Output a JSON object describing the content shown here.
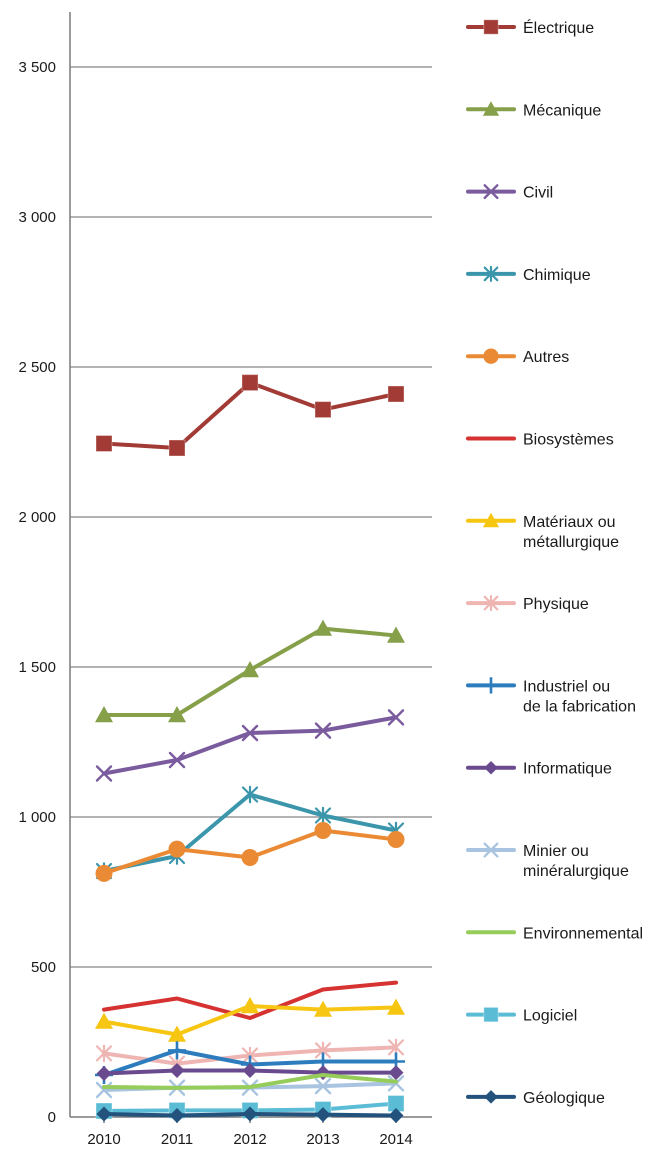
{
  "chart_data": {
    "type": "line",
    "title": "",
    "xlabel": "",
    "ylabel": "",
    "x": [
      "2010",
      "2011",
      "2012",
      "2013",
      "2014"
    ],
    "ylim": [
      0,
      3700
    ],
    "y_ticks": [
      0,
      500,
      1000,
      1500,
      2000,
      2500,
      3000,
      3500
    ],
    "y_tick_labels": [
      "0",
      "500",
      "1 000",
      "1 500",
      "2 000",
      "2 500",
      "3 000",
      "3 500"
    ],
    "grid": true,
    "legend_position": "right",
    "series": [
      {
        "name": "Électrique",
        "label_lines": [
          "Électrique"
        ],
        "color": "#a23b35",
        "marker": "square",
        "values": [
          2245,
          2230,
          2448,
          2358,
          2410
        ]
      },
      {
        "name": "Mécanique",
        "label_lines": [
          "Mécanique"
        ],
        "color": "#86a04a",
        "marker": "triangle",
        "values": [
          1340,
          1340,
          1490,
          1628,
          1605
        ]
      },
      {
        "name": "Civil",
        "label_lines": [
          "Civil"
        ],
        "color": "#7a5b9e",
        "marker": "x",
        "values": [
          1145,
          1190,
          1280,
          1288,
          1332
        ]
      },
      {
        "name": "Chimique",
        "label_lines": [
          "Chimique"
        ],
        "color": "#3b96ac",
        "marker": "star",
        "values": [
          820,
          870,
          1075,
          1005,
          955
        ]
      },
      {
        "name": "Autres",
        "label_lines": [
          "Autres"
        ],
        "color": "#ea8a35",
        "marker": "circle",
        "values": [
          812,
          893,
          865,
          955,
          925
        ]
      },
      {
        "name": "Biosystèmes",
        "label_lines": [
          "Biosystèmes"
        ],
        "color": "#d63232",
        "marker": "none",
        "values": [
          358,
          395,
          330,
          425,
          448
        ]
      },
      {
        "name": "Matériaux ou métallurgique",
        "label_lines": [
          "Matériaux ou",
          "métallurgique"
        ],
        "color": "#f7c613",
        "marker": "triangle",
        "values": [
          318,
          275,
          370,
          358,
          365
        ]
      },
      {
        "name": "Physique",
        "label_lines": [
          "Physique"
        ],
        "color": "#efb5b3",
        "marker": "star",
        "values": [
          212,
          178,
          205,
          222,
          232
        ]
      },
      {
        "name": "Industriel ou de la fabrication",
        "label_lines": [
          "Industriel ou",
          "de la fabrication"
        ],
        "color": "#2d7dbe",
        "marker": "plus",
        "values": [
          140,
          222,
          175,
          185,
          185
        ]
      },
      {
        "name": "Informatique",
        "label_lines": [
          "Informatique"
        ],
        "color": "#6a4a8e",
        "marker": "diamond",
        "values": [
          145,
          155,
          155,
          148,
          148
        ]
      },
      {
        "name": "Minier ou minéralurgique",
        "label_lines": [
          "Minier ou",
          "minéralurgique"
        ],
        "color": "#a8c4e0",
        "marker": "x",
        "values": [
          90,
          98,
          98,
          103,
          112
        ]
      },
      {
        "name": "Environnemental",
        "label_lines": [
          "Environnemental"
        ],
        "color": "#95cc5a",
        "marker": "none",
        "values": [
          100,
          97,
          100,
          140,
          118
        ]
      },
      {
        "name": "Logiciel",
        "label_lines": [
          "Logiciel"
        ],
        "color": "#5bbcd6",
        "marker": "square",
        "values": [
          20,
          22,
          22,
          25,
          45
        ]
      },
      {
        "name": "Géologique",
        "label_lines": [
          "Géologique"
        ],
        "color": "#23527c",
        "marker": "diamond",
        "values": [
          10,
          5,
          10,
          8,
          5
        ]
      }
    ]
  }
}
